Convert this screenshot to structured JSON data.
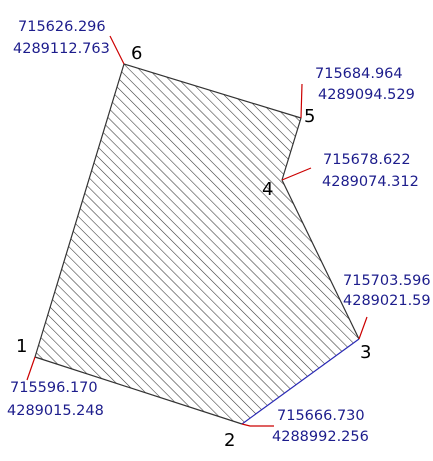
{
  "colors": {
    "background": "#ffffff",
    "edge": "#333333",
    "edge_blue": "#2a2ab5",
    "leader": "#cc0000",
    "coordinate_text": "#1d1d8c",
    "vertex_label": "#000000",
    "hatch": "#333333"
  },
  "vertices": [
    {
      "id": "1",
      "easting": "715596.170",
      "northing": "4289015.248"
    },
    {
      "id": "2",
      "easting": "715666.730",
      "northing": "4288992.256"
    },
    {
      "id": "3",
      "easting": "715703.596",
      "northing": "4289021.59"
    },
    {
      "id": "4",
      "easting": "715678.622",
      "northing": "4289074.312"
    },
    {
      "id": "5",
      "easting": "715684.964",
      "northing": "4289094.529"
    },
    {
      "id": "6",
      "easting": "715626.296",
      "northing": "4289112.763"
    }
  ]
}
